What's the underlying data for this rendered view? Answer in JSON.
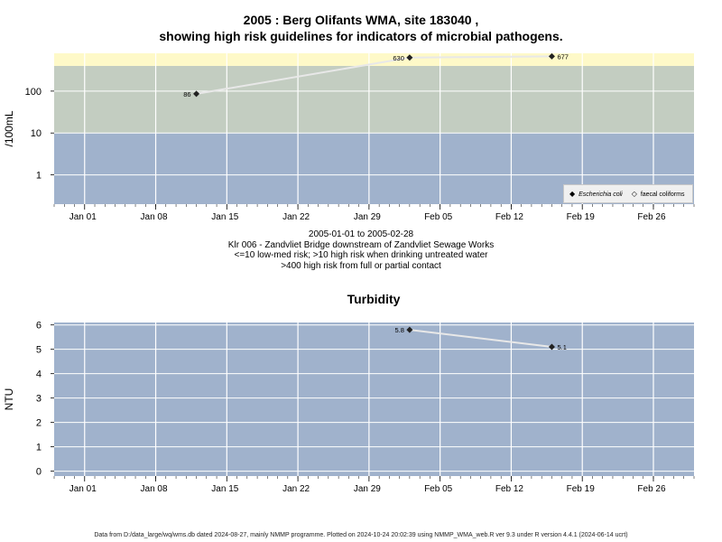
{
  "title_line1": "2005 : Berg Olifants WMA, site 183040 ,",
  "title_line2": "showing high risk guidelines for indicators of microbial pathogens.",
  "caption": {
    "date_range": "2005-01-01 to 2005-02-28",
    "site": "Klr 006 - Zandvliet Bridge downstream of Zandvliet Sewage Works",
    "guideline1": "<=10 low-med risk; >10 high risk when drinking untreated water",
    "guideline2": ">400 high risk from full or partial contact"
  },
  "footer": "Data from D:/data_large/wq/wms.db dated 2024-08-27, mainly NMMP programme. Plotted on 2024-10-24 20:02:39 using NMMP_WMA_web.R ver 9.3 under R version 4.4.1 (2024-06-14 ucrt)",
  "colors": {
    "low_band": "#a0b2cc",
    "mid_band": "#c3cdc1",
    "high_band": "#fef9c8",
    "line": "#e8e8e8",
    "point": "#222222",
    "grid": "#ffffff"
  },
  "legend": {
    "ecoli_label": "Escherichia coli",
    "faecal_label": "faecal coliforms"
  },
  "chart_data": [
    {
      "type": "line",
      "title": "",
      "ylabel": "/100mL",
      "yscale": "log",
      "x_ticks": [
        "Jan 01",
        "Jan 08",
        "Jan 15",
        "Jan 22",
        "Jan 29",
        "Feb 05",
        "Feb 12",
        "Feb 19",
        "Feb 26"
      ],
      "x_tick_dates": [
        "2005-01-01",
        "2005-01-08",
        "2005-01-15",
        "2005-01-22",
        "2005-01-29",
        "2005-02-05",
        "2005-02-12",
        "2005-02-19",
        "2005-02-26"
      ],
      "xlim": [
        "2004-12-29",
        "2005-03-02"
      ],
      "y_ticks": [
        1,
        10,
        100
      ],
      "y_tick_labels": [
        "1",
        "10",
        "100"
      ],
      "ylim": [
        0.2,
        800
      ],
      "bands": [
        {
          "from": 0.2,
          "to": 10,
          "color": "#a0b2cc"
        },
        {
          "from": 10,
          "to": 400,
          "color": "#c3cdc1"
        },
        {
          "from": 400,
          "to": 800,
          "color": "#fef9c8"
        }
      ],
      "series": [
        {
          "name": "Escherichia coli",
          "points": [
            {
              "x": "2005-01-12",
              "y": 86,
              "label": "86"
            },
            {
              "x": "2005-02-02",
              "y": 630,
              "label": "630"
            },
            {
              "x": "2005-02-16",
              "y": 677,
              "label": "677"
            }
          ]
        }
      ],
      "legend_position": "bottom-right",
      "grid": true
    },
    {
      "type": "line",
      "title": "Turbidity",
      "ylabel": "NTU",
      "yscale": "linear",
      "x_ticks": [
        "Jan 01",
        "Jan 08",
        "Jan 15",
        "Jan 22",
        "Jan 29",
        "Feb 05",
        "Feb 12",
        "Feb 19",
        "Feb 26"
      ],
      "x_tick_dates": [
        "2005-01-01",
        "2005-01-08",
        "2005-01-15",
        "2005-01-22",
        "2005-01-29",
        "2005-02-05",
        "2005-02-12",
        "2005-02-19",
        "2005-02-26"
      ],
      "xlim": [
        "2004-12-29",
        "2005-03-02"
      ],
      "y_ticks": [
        0,
        1,
        2,
        3,
        4,
        5,
        6
      ],
      "y_tick_labels": [
        "0",
        "1",
        "2",
        "3",
        "4",
        "5",
        "6"
      ],
      "ylim": [
        -0.2,
        6.1
      ],
      "series": [
        {
          "name": "",
          "points": [
            {
              "x": "2005-02-02",
              "y": 5.8,
              "label": "5.8"
            },
            {
              "x": "2005-02-16",
              "y": 5.1,
              "label": "5.1"
            }
          ]
        }
      ],
      "grid": true
    }
  ]
}
